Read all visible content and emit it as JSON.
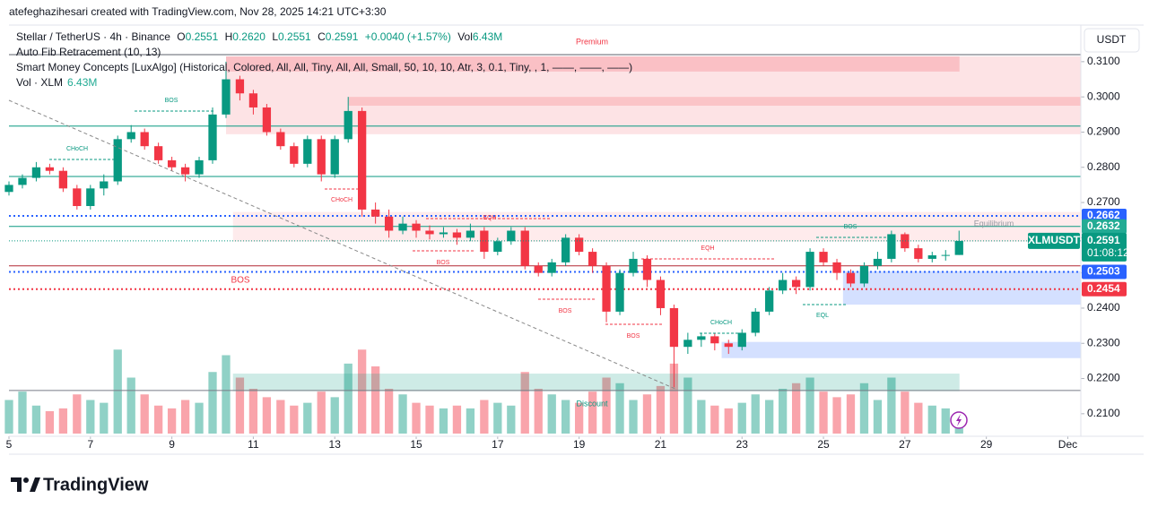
{
  "chart_data": {
    "type": "candlestick",
    "credit": "atefeghazihesari created with TradingView.com, Nov 28, 2025 14:21 UTC+3:30",
    "legend": {
      "symbol": "Stellar / TetherUS · 4h · Binance",
      "o_label": "O",
      "open": "0.2551",
      "h_label": "H",
      "high": "0.2620",
      "l_label": "L",
      "low": "0.2551",
      "c_label": "C",
      "close": "0.2591",
      "change": "+0.0040 (+1.57%)",
      "vol_label": "Vol",
      "vol": "6.43M"
    },
    "indicators": [
      "Auto Fib Retracement (10, 13)",
      "Smart Money Concepts [LuxAlgo] (Historical, Colored, All, All, Tiny, All, All, Small, 50, 10, 10, Atr, 3, 0.1, Tiny, , 1, ——, ——, ——)"
    ],
    "volume_legend": {
      "name": "Vol · XLM",
      "value": "6.43M"
    },
    "currency": "USDT",
    "brand": "TradingView",
    "up_color": "#089981",
    "down_color": "#f23645",
    "x": [
      5,
      5.33,
      5.67,
      6,
      6.33,
      6.67,
      7,
      7.33,
      7.67,
      8,
      8.33,
      8.67,
      9,
      9.33,
      9.67,
      10,
      10.33,
      10.67,
      11,
      11.33,
      11.67,
      12,
      12.33,
      12.67,
      13,
      13.33,
      13.67,
      14,
      14.33,
      14.67,
      15,
      15.33,
      15.67,
      16,
      16.33,
      16.67,
      17,
      17.33,
      17.67,
      18,
      18.33,
      18.67,
      19,
      19.33,
      19.67,
      20,
      20.33,
      20.67,
      21,
      21.33,
      21.67,
      22,
      22.33,
      22.67,
      23,
      23.33,
      23.67,
      24,
      24.33,
      24.67,
      25,
      25.33,
      25.67,
      26,
      26.33,
      26.67,
      27,
      27.33,
      27.67,
      28,
      28.33
    ],
    "open": [
      0.273,
      0.275,
      0.277,
      0.28,
      0.279,
      0.274,
      0.269,
      0.274,
      0.276,
      0.288,
      0.29,
      0.286,
      0.282,
      0.28,
      0.278,
      0.282,
      0.295,
      0.305,
      0.301,
      0.297,
      0.29,
      0.286,
      0.281,
      0.288,
      0.278,
      0.288,
      0.296,
      0.268,
      0.266,
      0.262,
      0.264,
      0.262,
      0.261,
      0.2615,
      0.26,
      0.262,
      0.256,
      0.259,
      0.262,
      0.252,
      0.25,
      0.253,
      0.26,
      0.256,
      0.252,
      0.239,
      0.25,
      0.254,
      0.248,
      0.24,
      0.229,
      0.231,
      0.232,
      0.23,
      0.229,
      0.233,
      0.239,
      0.245,
      0.248,
      0.246,
      0.256,
      0.253,
      0.25,
      0.247,
      0.252,
      0.254,
      0.261,
      0.257,
      0.254,
      0.255,
      0.2551
    ],
    "high": [
      0.276,
      0.278,
      0.2815,
      0.281,
      0.28,
      0.275,
      0.275,
      0.278,
      0.289,
      0.292,
      0.291,
      0.287,
      0.283,
      0.281,
      0.283,
      0.297,
      0.31,
      0.306,
      0.302,
      0.298,
      0.291,
      0.287,
      0.289,
      0.289,
      0.289,
      0.3,
      0.297,
      0.27,
      0.268,
      0.266,
      0.265,
      0.2635,
      0.263,
      0.2625,
      0.264,
      0.263,
      0.26,
      0.263,
      0.263,
      0.253,
      0.254,
      0.261,
      0.261,
      0.257,
      0.253,
      0.251,
      0.256,
      0.255,
      0.249,
      0.241,
      0.233,
      0.233,
      0.233,
      0.231,
      0.234,
      0.24,
      0.246,
      0.25,
      0.249,
      0.257,
      0.257,
      0.254,
      0.251,
      0.253,
      0.256,
      0.262,
      0.2615,
      0.258,
      0.256,
      0.2565,
      0.262
    ],
    "low": [
      0.272,
      0.274,
      0.276,
      0.278,
      0.273,
      0.268,
      0.268,
      0.272,
      0.275,
      0.287,
      0.285,
      0.281,
      0.279,
      0.276,
      0.277,
      0.281,
      0.294,
      0.299,
      0.295,
      0.289,
      0.285,
      0.28,
      0.28,
      0.276,
      0.277,
      0.287,
      0.266,
      0.264,
      0.26,
      0.261,
      0.26,
      0.2595,
      0.26,
      0.258,
      0.259,
      0.254,
      0.255,
      0.258,
      0.251,
      0.249,
      0.249,
      0.252,
      0.255,
      0.25,
      0.236,
      0.238,
      0.249,
      0.246,
      0.238,
      0.2175,
      0.227,
      0.229,
      0.228,
      0.227,
      0.228,
      0.232,
      0.238,
      0.244,
      0.244,
      0.245,
      0.252,
      0.248,
      0.246,
      0.246,
      0.251,
      0.253,
      0.256,
      0.253,
      0.253,
      0.2535,
      0.2551
    ],
    "close": [
      0.275,
      0.277,
      0.28,
      0.279,
      0.274,
      0.269,
      0.274,
      0.276,
      0.288,
      0.29,
      0.286,
      0.282,
      0.28,
      0.278,
      0.282,
      0.295,
      0.305,
      0.301,
      0.297,
      0.29,
      0.286,
      0.281,
      0.288,
      0.278,
      0.288,
      0.296,
      0.268,
      0.266,
      0.262,
      0.264,
      0.262,
      0.261,
      0.2615,
      0.26,
      0.262,
      0.256,
      0.259,
      0.262,
      0.252,
      0.25,
      0.253,
      0.26,
      0.256,
      0.252,
      0.239,
      0.25,
      0.254,
      0.248,
      0.24,
      0.229,
      0.231,
      0.232,
      0.23,
      0.229,
      0.233,
      0.239,
      0.245,
      0.248,
      0.246,
      0.256,
      0.253,
      0.25,
      0.247,
      0.252,
      0.254,
      0.261,
      0.257,
      0.254,
      0.255,
      0.2551,
      0.2591
    ],
    "volume": [
      12,
      15,
      10,
      8,
      9,
      14,
      12,
      11,
      30,
      20,
      14,
      10,
      9,
      12,
      11,
      22,
      28,
      20,
      16,
      13,
      12,
      10,
      11,
      15,
      13,
      25,
      30,
      24,
      16,
      14,
      11,
      10,
      9,
      10,
      9,
      12,
      11,
      10,
      22,
      16,
      14,
      12,
      11,
      15,
      20,
      18,
      12,
      14,
      17,
      25,
      20,
      12,
      10,
      9,
      11,
      14,
      12,
      16,
      18,
      20,
      15,
      13,
      14,
      18,
      12,
      20,
      15,
      11,
      10,
      9,
      6.43
    ],
    "volume_ylim": [
      0,
      40
    ],
    "xlim": [
      5,
      31.32
    ],
    "xticks": [
      {
        "value": 5,
        "label": "5"
      },
      {
        "value": 7,
        "label": "7"
      },
      {
        "value": 9,
        "label": "9"
      },
      {
        "value": 11,
        "label": "11"
      },
      {
        "value": 13,
        "label": "13"
      },
      {
        "value": 15,
        "label": "15"
      },
      {
        "value": 17,
        "label": "17"
      },
      {
        "value": 19,
        "label": "19"
      },
      {
        "value": 21,
        "label": "21"
      },
      {
        "value": 23,
        "label": "23"
      },
      {
        "value": 25,
        "label": "25"
      },
      {
        "value": 27,
        "label": "27"
      },
      {
        "value": 29,
        "label": "29"
      },
      {
        "value": 31,
        "label": "Dec"
      }
    ],
    "ylim": [
      0.2036,
      0.3204
    ],
    "yticks": [
      {
        "value": 0.21,
        "label": "0.2100"
      },
      {
        "value": 0.22,
        "label": "0.2200"
      },
      {
        "value": 0.23,
        "label": "0.2300"
      },
      {
        "value": 0.24,
        "label": "0.2400"
      },
      {
        "value": 0.25,
        "label": "0.2500"
      },
      {
        "value": 0.26,
        "label": "0.2600"
      },
      {
        "value": 0.27,
        "label": "0.2700"
      },
      {
        "value": 0.28,
        "label": "0.2800"
      },
      {
        "value": 0.29,
        "label": "0.2900"
      },
      {
        "value": 0.3,
        "label": "0.3000"
      },
      {
        "value": 0.31,
        "label": "0.3100"
      }
    ],
    "zones": [
      {
        "x": [
          10.33,
          31.32
        ],
        "y": [
          0.2894,
          0.3115
        ],
        "color": "rgba(242,54,69,0.14)"
      },
      {
        "x": [
          10.33,
          28.34
        ],
        "y": [
          0.3072,
          0.3115
        ],
        "color": "rgba(242,54,69,0.2)"
      },
      {
        "x": [
          13.34,
          31.32
        ],
        "y": [
          0.2975,
          0.3
        ],
        "color": "rgba(242,54,69,0.18)"
      },
      {
        "x": [
          10.5,
          31.32
        ],
        "y": [
          0.2589,
          0.2673
        ],
        "color": "rgba(242,54,69,0.1)"
      },
      {
        "x": [
          10.5,
          28.34
        ],
        "y": [
          0.2164,
          0.2214
        ],
        "color": "rgba(8,153,129,0.2)"
      },
      {
        "x": [
          25.48,
          31.32
        ],
        "y": [
          0.241,
          0.2505
        ],
        "color": "rgba(41,98,255,0.2)"
      },
      {
        "x": [
          22.5,
          31.32
        ],
        "y": [
          0.2258,
          0.2304
        ],
        "color": "rgba(41,98,255,0.2)"
      }
    ],
    "levels": [
      {
        "value": 0.312,
        "color": "#5d606b",
        "style": "solid"
      },
      {
        "value": 0.2917,
        "color": "#089981",
        "style": "solid"
      },
      {
        "value": 0.2774,
        "color": "#089981",
        "style": "solid"
      },
      {
        "value": 0.2662,
        "color": "#2962ff",
        "style": "dotted"
      },
      {
        "value": 0.2632,
        "color": "#089981",
        "style": "solid"
      },
      {
        "value": 0.252,
        "color": "#b22833",
        "style": "solid"
      },
      {
        "value": 0.2503,
        "color": "#2962ff",
        "style": "dotted"
      },
      {
        "value": 0.2454,
        "color": "#f23645",
        "style": "dotted"
      },
      {
        "value": 0.2166,
        "color": "#787b86",
        "style": "solid"
      }
    ],
    "price_tags": [
      {
        "value": 0.2662,
        "label": "0.2662",
        "color": "#2962ff"
      },
      {
        "value": 0.2632,
        "label": "0.2632",
        "color": "#22ab94"
      },
      {
        "value": 0.2503,
        "label": "0.2503",
        "color": "#2962ff"
      },
      {
        "value": 0.2454,
        "label": "0.2454",
        "color": "#f23645"
      }
    ],
    "last_price": {
      "name": "XLMUSDT",
      "value": 0.2591,
      "label": "0.2591",
      "countdown": "01:08:12",
      "color": "#089981"
    },
    "annotations": [
      "Premium",
      "Discount",
      "Equilibrium",
      "BOS",
      "CHoCH",
      "CHoCH",
      "EQH",
      "BOS",
      "BOS",
      "BOS",
      "BOS",
      "EQH",
      "CHoCH",
      "BOS",
      "EQL"
    ]
  }
}
